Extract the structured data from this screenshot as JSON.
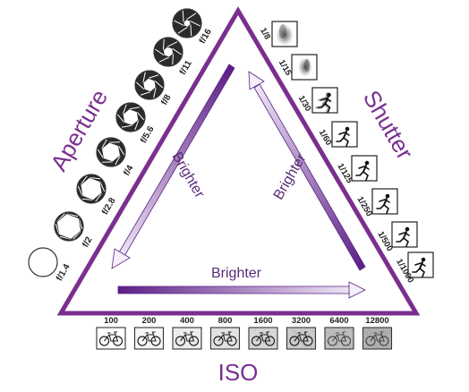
{
  "titles": {
    "aperture": "Aperture",
    "shutter": "Shutter",
    "iso": "ISO"
  },
  "arrows": {
    "left": "Brighter",
    "right": "Brighter",
    "bottom": "Brighter"
  },
  "colors": {
    "frame": "#7a2f8f",
    "arrow_dark": "#5c1f86",
    "arrow_light": "#f4effa"
  },
  "aperture": {
    "stops": [
      "f/1.4",
      "f/2",
      "f/2.8",
      "f/4",
      "f/5.6",
      "f/8",
      "f/11",
      "f/16"
    ],
    "icon": "aperture-blade-icon"
  },
  "shutter": {
    "speeds": [
      "1/8",
      "1/15",
      "1/30",
      "1/60",
      "1/125",
      "1/250",
      "1/500",
      "1/1000"
    ],
    "icon": "running-figure-icon"
  },
  "iso": {
    "values": [
      "100",
      "200",
      "400",
      "800",
      "1600",
      "3200",
      "6400",
      "12800"
    ],
    "icon": "bicycle-icon"
  }
}
